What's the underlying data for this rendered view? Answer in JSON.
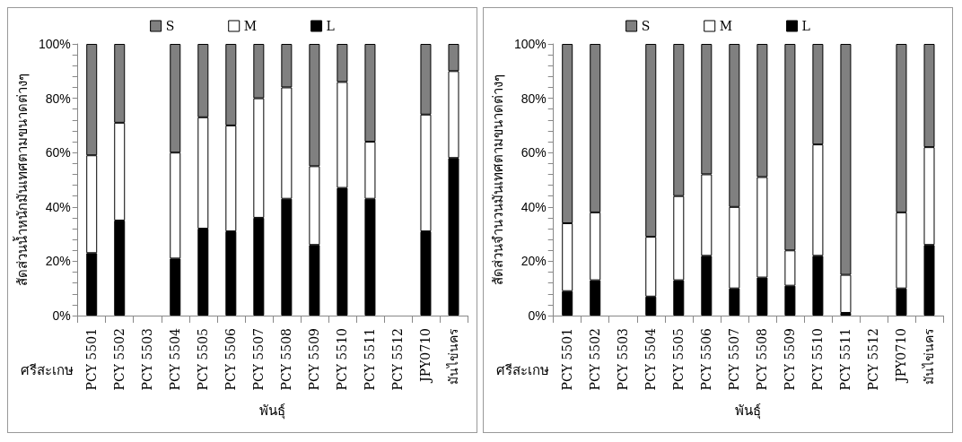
{
  "chart_data": [
    {
      "type": "bar",
      "stacked": true,
      "ylabel": "สัดส่วนน้ำหนักมันเทศตามขนาดต่างๆ",
      "xlabel": "พันธุ์",
      "annotations": [
        "ศรีสะเกษ"
      ],
      "categories": [
        "PCY 5501",
        "PCY 5502",
        "PCY 5503",
        "PCY 5504",
        "PCY 5505",
        "PCY 5506",
        "PCY 5507",
        "PCY 5508",
        "PCY 5509",
        "PCY 5510",
        "PCY 5511",
        "PCY 5512",
        "JPY0710",
        "มันไข่นคร"
      ],
      "series": [
        {
          "name": "L",
          "color": "#000000",
          "values": [
            23,
            35,
            null,
            21,
            32,
            31,
            36,
            43,
            26,
            47,
            43,
            null,
            31,
            58
          ]
        },
        {
          "name": "M",
          "color": "#ffffff",
          "values": [
            36,
            36,
            null,
            39,
            41,
            39,
            44,
            41,
            29,
            39,
            21,
            null,
            43,
            32
          ]
        },
        {
          "name": "S",
          "color": "#808080",
          "values": [
            41,
            29,
            null,
            40,
            27,
            30,
            20,
            16,
            45,
            14,
            36,
            null,
            26,
            10
          ]
        }
      ],
      "ylim": [
        0,
        100
      ],
      "yticks": [
        {
          "value": 0,
          "label": "0%"
        },
        {
          "value": 20,
          "label": "20%"
        },
        {
          "value": 40,
          "label": "40%"
        },
        {
          "value": 60,
          "label": "60%"
        },
        {
          "value": 80,
          "label": "80%"
        },
        {
          "value": 100,
          "label": "100%"
        }
      ],
      "grid": false,
      "legend": "top"
    },
    {
      "type": "bar",
      "stacked": true,
      "ylabel": "สัดส่วนจำนวนมันเทศตามขนาดต่างๆ",
      "xlabel": "พันธุ์",
      "annotations": [
        "ศรีสะเกษ"
      ],
      "categories": [
        "PCY 5501",
        "PCY 5502",
        "PCY 5503",
        "PCY 5504",
        "PCY 5505",
        "PCY 5506",
        "PCY 5507",
        "PCY 5508",
        "PCY 5509",
        "PCY 5510",
        "PCY 5511",
        "PCY 5512",
        "JPY0710",
        "มันไข่นคร"
      ],
      "series": [
        {
          "name": "L",
          "color": "#000000",
          "values": [
            9,
            13,
            null,
            7,
            13,
            22,
            10,
            14,
            11,
            22,
            1,
            null,
            10,
            26
          ]
        },
        {
          "name": "M",
          "color": "#ffffff",
          "values": [
            25,
            25,
            null,
            22,
            31,
            30,
            30,
            37,
            13,
            41,
            14,
            null,
            28,
            36
          ]
        },
        {
          "name": "S",
          "color": "#808080",
          "values": [
            66,
            62,
            null,
            71,
            56,
            48,
            60,
            49,
            76,
            37,
            85,
            null,
            62,
            38
          ]
        }
      ],
      "ylim": [
        0,
        100
      ],
      "yticks": [
        {
          "value": 0,
          "label": "0%"
        },
        {
          "value": 20,
          "label": "20%"
        },
        {
          "value": 40,
          "label": "40%"
        },
        {
          "value": 60,
          "label": "60%"
        },
        {
          "value": 80,
          "label": "80%"
        },
        {
          "value": 100,
          "label": "100%"
        }
      ],
      "grid": false,
      "legend": "top"
    }
  ]
}
